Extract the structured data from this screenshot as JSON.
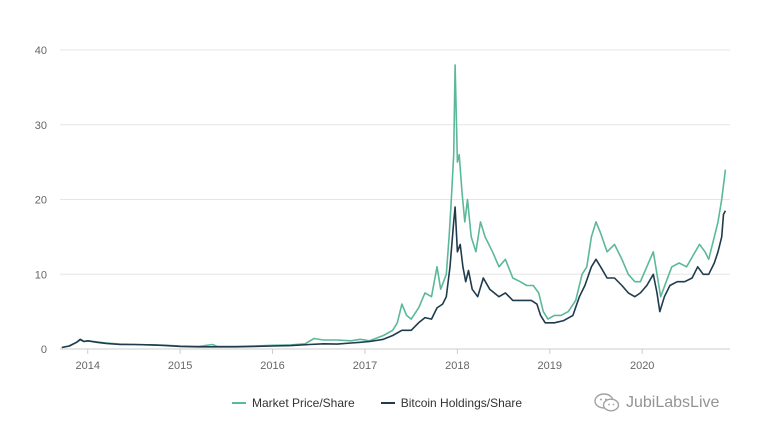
{
  "chart_data": {
    "type": "line",
    "x_ticks": [
      "2014",
      "2015",
      "2016",
      "2017",
      "2018",
      "2019",
      "2020"
    ],
    "y_ticks": [
      0,
      10,
      20,
      30,
      40
    ],
    "ylim": [
      0,
      40
    ],
    "xlim": [
      2013.7,
      2020.95
    ],
    "grid": "horizontal",
    "legend_position": "bottom",
    "series": [
      {
        "name": "Market Price/Share",
        "color": "#5cb89a",
        "points": [
          [
            2013.72,
            0.2
          ],
          [
            2013.8,
            0.4
          ],
          [
            2013.88,
            0.9
          ],
          [
            2013.92,
            1.2
          ],
          [
            2013.96,
            1.0
          ],
          [
            2014.0,
            1.1
          ],
          [
            2014.1,
            0.95
          ],
          [
            2014.2,
            0.8
          ],
          [
            2014.35,
            0.65
          ],
          [
            2014.5,
            0.6
          ],
          [
            2014.7,
            0.55
          ],
          [
            2014.85,
            0.5
          ],
          [
            2015.0,
            0.4
          ],
          [
            2015.2,
            0.35
          ],
          [
            2015.35,
            0.6
          ],
          [
            2015.4,
            0.35
          ],
          [
            2015.6,
            0.35
          ],
          [
            2015.8,
            0.4
          ],
          [
            2016.0,
            0.5
          ],
          [
            2016.2,
            0.55
          ],
          [
            2016.35,
            0.7
          ],
          [
            2016.45,
            1.4
          ],
          [
            2016.55,
            1.2
          ],
          [
            2016.7,
            1.2
          ],
          [
            2016.85,
            1.1
          ],
          [
            2016.95,
            1.3
          ],
          [
            2017.05,
            1.1
          ],
          [
            2017.2,
            1.8
          ],
          [
            2017.3,
            2.5
          ],
          [
            2017.35,
            3.5
          ],
          [
            2017.4,
            6.0
          ],
          [
            2017.45,
            4.5
          ],
          [
            2017.5,
            4.0
          ],
          [
            2017.58,
            5.5
          ],
          [
            2017.65,
            7.5
          ],
          [
            2017.72,
            7.0
          ],
          [
            2017.78,
            11.0
          ],
          [
            2017.82,
            8.0
          ],
          [
            2017.88,
            10.0
          ],
          [
            2017.91,
            15.0
          ],
          [
            2017.93,
            19.0
          ],
          [
            2017.96,
            26.0
          ],
          [
            2017.975,
            38.0
          ],
          [
            2018.0,
            25.0
          ],
          [
            2018.02,
            26.0
          ],
          [
            2018.05,
            21.0
          ],
          [
            2018.08,
            17.0
          ],
          [
            2018.11,
            20.0
          ],
          [
            2018.15,
            15.0
          ],
          [
            2018.2,
            13.0
          ],
          [
            2018.25,
            17.0
          ],
          [
            2018.3,
            15.0
          ],
          [
            2018.38,
            13.0
          ],
          [
            2018.45,
            11.0
          ],
          [
            2018.52,
            12.0
          ],
          [
            2018.6,
            9.5
          ],
          [
            2018.68,
            9.0
          ],
          [
            2018.75,
            8.5
          ],
          [
            2018.82,
            8.5
          ],
          [
            2018.88,
            7.5
          ],
          [
            2018.93,
            5.0
          ],
          [
            2018.98,
            4.0
          ],
          [
            2019.05,
            4.5
          ],
          [
            2019.12,
            4.5
          ],
          [
            2019.2,
            5.0
          ],
          [
            2019.28,
            6.5
          ],
          [
            2019.35,
            10.0
          ],
          [
            2019.4,
            11.0
          ],
          [
            2019.45,
            15.0
          ],
          [
            2019.5,
            17.0
          ],
          [
            2019.55,
            15.5
          ],
          [
            2019.62,
            13.0
          ],
          [
            2019.7,
            14.0
          ],
          [
            2019.78,
            12.0
          ],
          [
            2019.85,
            10.0
          ],
          [
            2019.92,
            9.0
          ],
          [
            2019.98,
            9.0
          ],
          [
            2020.05,
            11.0
          ],
          [
            2020.12,
            13.0
          ],
          [
            2020.16,
            10.0
          ],
          [
            2020.2,
            7.0
          ],
          [
            2020.26,
            9.0
          ],
          [
            2020.32,
            11.0
          ],
          [
            2020.4,
            11.5
          ],
          [
            2020.48,
            11.0
          ],
          [
            2020.55,
            12.5
          ],
          [
            2020.62,
            14.0
          ],
          [
            2020.68,
            13.0
          ],
          [
            2020.72,
            12.0
          ],
          [
            2020.78,
            15.0
          ],
          [
            2020.82,
            17.0
          ],
          [
            2020.86,
            20.0
          ],
          [
            2020.89,
            23.0
          ],
          [
            2020.9,
            24.0
          ]
        ]
      },
      {
        "name": "Bitcoin Holdings/Share",
        "color": "#1f3b4d",
        "points": [
          [
            2013.72,
            0.2
          ],
          [
            2013.8,
            0.4
          ],
          [
            2013.88,
            0.9
          ],
          [
            2013.92,
            1.3
          ],
          [
            2013.96,
            1.0
          ],
          [
            2014.0,
            1.1
          ],
          [
            2014.1,
            0.9
          ],
          [
            2014.2,
            0.75
          ],
          [
            2014.35,
            0.6
          ],
          [
            2014.5,
            0.6
          ],
          [
            2014.7,
            0.55
          ],
          [
            2014.85,
            0.45
          ],
          [
            2015.0,
            0.35
          ],
          [
            2015.2,
            0.3
          ],
          [
            2015.4,
            0.3
          ],
          [
            2015.6,
            0.3
          ],
          [
            2015.8,
            0.35
          ],
          [
            2016.0,
            0.4
          ],
          [
            2016.2,
            0.45
          ],
          [
            2016.4,
            0.6
          ],
          [
            2016.55,
            0.7
          ],
          [
            2016.7,
            0.65
          ],
          [
            2016.85,
            0.8
          ],
          [
            2016.95,
            0.9
          ],
          [
            2017.05,
            1.0
          ],
          [
            2017.2,
            1.3
          ],
          [
            2017.3,
            1.8
          ],
          [
            2017.4,
            2.5
          ],
          [
            2017.5,
            2.5
          ],
          [
            2017.58,
            3.5
          ],
          [
            2017.65,
            4.2
          ],
          [
            2017.72,
            4.0
          ],
          [
            2017.78,
            5.5
          ],
          [
            2017.84,
            6.0
          ],
          [
            2017.88,
            7.0
          ],
          [
            2017.92,
            11.0
          ],
          [
            2017.96,
            17.0
          ],
          [
            2017.975,
            19.0
          ],
          [
            2018.0,
            13.0
          ],
          [
            2018.03,
            14.0
          ],
          [
            2018.06,
            11.0
          ],
          [
            2018.09,
            9.0
          ],
          [
            2018.12,
            10.5
          ],
          [
            2018.16,
            8.0
          ],
          [
            2018.22,
            7.0
          ],
          [
            2018.28,
            9.5
          ],
          [
            2018.35,
            8.0
          ],
          [
            2018.45,
            7.0
          ],
          [
            2018.52,
            7.5
          ],
          [
            2018.6,
            6.5
          ],
          [
            2018.7,
            6.5
          ],
          [
            2018.8,
            6.5
          ],
          [
            2018.86,
            6.0
          ],
          [
            2018.9,
            4.5
          ],
          [
            2018.95,
            3.5
          ],
          [
            2019.05,
            3.5
          ],
          [
            2019.15,
            3.8
          ],
          [
            2019.25,
            4.5
          ],
          [
            2019.32,
            7.0
          ],
          [
            2019.38,
            8.5
          ],
          [
            2019.45,
            11.0
          ],
          [
            2019.5,
            12.0
          ],
          [
            2019.55,
            11.0
          ],
          [
            2019.62,
            9.5
          ],
          [
            2019.7,
            9.5
          ],
          [
            2019.78,
            8.5
          ],
          [
            2019.85,
            7.5
          ],
          [
            2019.92,
            7.0
          ],
          [
            2019.98,
            7.5
          ],
          [
            2020.05,
            8.5
          ],
          [
            2020.12,
            10.0
          ],
          [
            2020.16,
            7.5
          ],
          [
            2020.19,
            5.0
          ],
          [
            2020.24,
            7.0
          ],
          [
            2020.3,
            8.5
          ],
          [
            2020.38,
            9.0
          ],
          [
            2020.46,
            9.0
          ],
          [
            2020.54,
            9.5
          ],
          [
            2020.6,
            11.0
          ],
          [
            2020.66,
            10.0
          ],
          [
            2020.72,
            10.0
          ],
          [
            2020.78,
            11.5
          ],
          [
            2020.82,
            13.0
          ],
          [
            2020.86,
            15.0
          ],
          [
            2020.88,
            18.0
          ],
          [
            2020.9,
            18.5
          ]
        ]
      }
    ]
  },
  "watermark": {
    "text": "JubiLabsLive",
    "icon": "wechat-icon"
  }
}
